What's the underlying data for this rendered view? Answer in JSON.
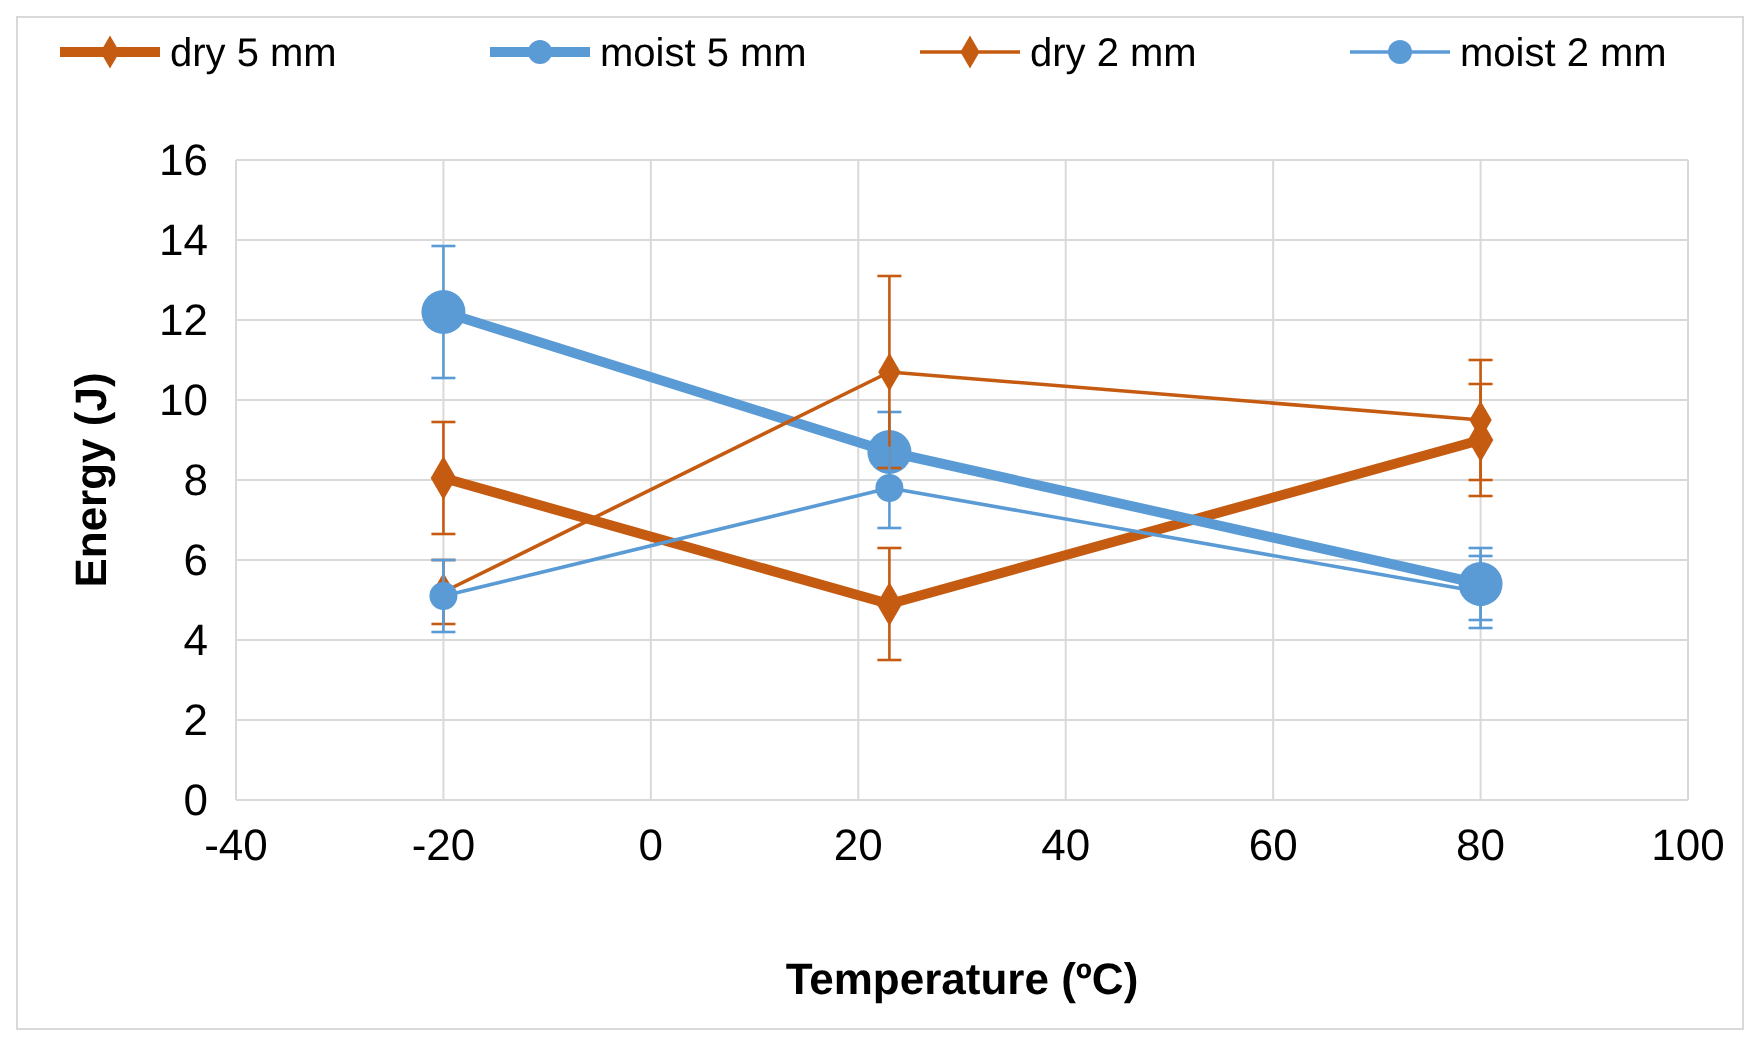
{
  "chart_data": {
    "type": "line",
    "xlabel": "Temperature (ºC)",
    "ylabel": "Energy (J)",
    "x": [
      -20,
      23,
      80
    ],
    "series": [
      {
        "name": "dry 5 mm",
        "color": "#c55a11",
        "marker": "diamond",
        "values": [
          8.05,
          4.9,
          9.0
        ],
        "errors": [
          1.4,
          1.4,
          1.4
        ]
      },
      {
        "name": "moist 5 mm",
        "color": "#5b9bd5",
        "marker": "circle",
        "values": [
          12.2,
          8.7,
          5.4
        ],
        "errors": [
          1.65,
          1.0,
          0.9
        ]
      },
      {
        "name": "dry 2 mm",
        "color": "#c55a11",
        "marker": "diamond",
        "values": [
          5.2,
          10.7,
          9.5
        ],
        "errors": [
          0.8,
          2.4,
          1.5
        ]
      },
      {
        "name": "moist 2 mm",
        "color": "#5b9bd5",
        "marker": "circle",
        "values": [
          5.1,
          7.8,
          5.2
        ],
        "errors": [
          0.9,
          1.0,
          0.9
        ]
      }
    ],
    "xlim": [
      -40,
      100
    ],
    "xticks": [
      -40,
      -20,
      0,
      20,
      40,
      60,
      80,
      100
    ],
    "ylim": [
      0,
      16
    ],
    "yticks": [
      0,
      2,
      4,
      6,
      8,
      10,
      12,
      14,
      16
    ],
    "grid": true,
    "legend": "top",
    "line_style": "solid"
  }
}
